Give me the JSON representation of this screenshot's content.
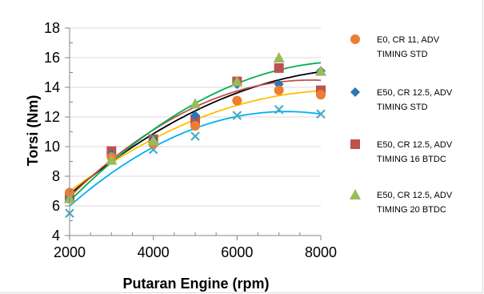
{
  "chart_data": {
    "type": "scatter",
    "title": "",
    "xlabel": "Putaran Engine (rpm)",
    "ylabel": "Torsi (Nm)",
    "xlim": [
      2000,
      8000
    ],
    "ylim": [
      4,
      18
    ],
    "xticks": [
      "2000",
      "4000",
      "6000",
      "8000"
    ],
    "yticks": [
      "4",
      "6",
      "8",
      "10",
      "12",
      "14",
      "16",
      "18"
    ],
    "x": [
      2000,
      3000,
      4000,
      5000,
      6000,
      7000,
      8000
    ],
    "grid": true,
    "legend_position": "right",
    "series": [
      {
        "name": "E0, CR 11, ADV TIMING STD",
        "marker": "circle",
        "color": "#ED7D31",
        "values": [
          6.9,
          9.3,
          10.2,
          11.4,
          13.1,
          13.8,
          13.5
        ],
        "trendline_color": "#FFC000"
      },
      {
        "name": "E50, CR 12.5, ADV TIMING STD",
        "marker": "diamond",
        "color": "#2E75B6",
        "values": [
          6.6,
          9.5,
          10.5,
          12.1,
          14.2,
          14.2,
          15.1
        ],
        "trendline_color": "#000000"
      },
      {
        "name": "E50, CR 12.5, ADV TIMING 16 BTDC",
        "marker": "square",
        "color": "#C0504D",
        "values": [
          6.6,
          9.7,
          10.5,
          11.8,
          14.4,
          15.3,
          13.8
        ],
        "trendline_color": "#C0504D"
      },
      {
        "name": "E50, CR 12.5, ADV TIMING 20 BTDC",
        "marker": "triangle",
        "color": "#9BBB59",
        "values": [
          6.5,
          9.1,
          10.4,
          12.9,
          14.4,
          16.0,
          15.1
        ],
        "trendline_color": "#00B050"
      },
      {
        "name": "",
        "marker": "x",
        "color": "#4BACC6",
        "values": [
          5.5,
          9.2,
          9.8,
          10.7,
          12.1,
          12.5,
          12.2
        ],
        "trendline_color": "#00B0F0"
      }
    ]
  }
}
